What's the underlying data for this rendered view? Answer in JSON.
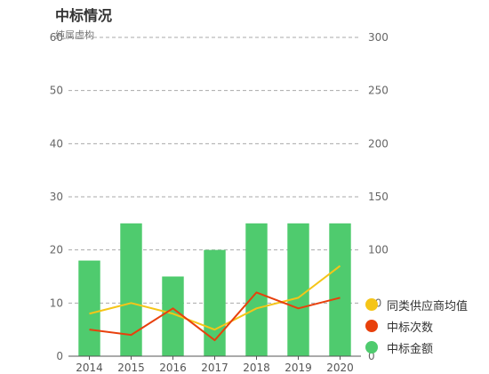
{
  "chart_data": {
    "title": "中标情况",
    "subtitle": "纯属虚构",
    "categories": [
      "2014",
      "2015",
      "2016",
      "2017",
      "2018",
      "2019",
      "2020"
    ],
    "y_left": {
      "min": 0,
      "max": 60,
      "ticks": [
        0,
        10,
        20,
        30,
        40,
        50,
        60
      ]
    },
    "y_right": {
      "min": 0,
      "max": 300,
      "ticks": [
        0,
        50,
        100,
        150,
        200,
        250,
        300
      ]
    },
    "grid": true,
    "legend_position": "right-bottom",
    "series": [
      {
        "name": "中标金额",
        "type": "bar",
        "axis": "left",
        "color": "#4fcb6e",
        "values": [
          18,
          25,
          15,
          20,
          25,
          25,
          25
        ]
      },
      {
        "name": "同类供应商均值",
        "type": "line",
        "axis": "left",
        "color": "#f5c518",
        "values": [
          8,
          10,
          8,
          5,
          9,
          11,
          17
        ]
      },
      {
        "name": "中标次数",
        "type": "line",
        "axis": "left",
        "color": "#e8400c",
        "values": [
          5,
          4,
          9,
          3,
          12,
          9,
          11
        ]
      }
    ],
    "legend_order": [
      "同类供应商均值",
      "中标次数",
      "中标金额"
    ]
  }
}
